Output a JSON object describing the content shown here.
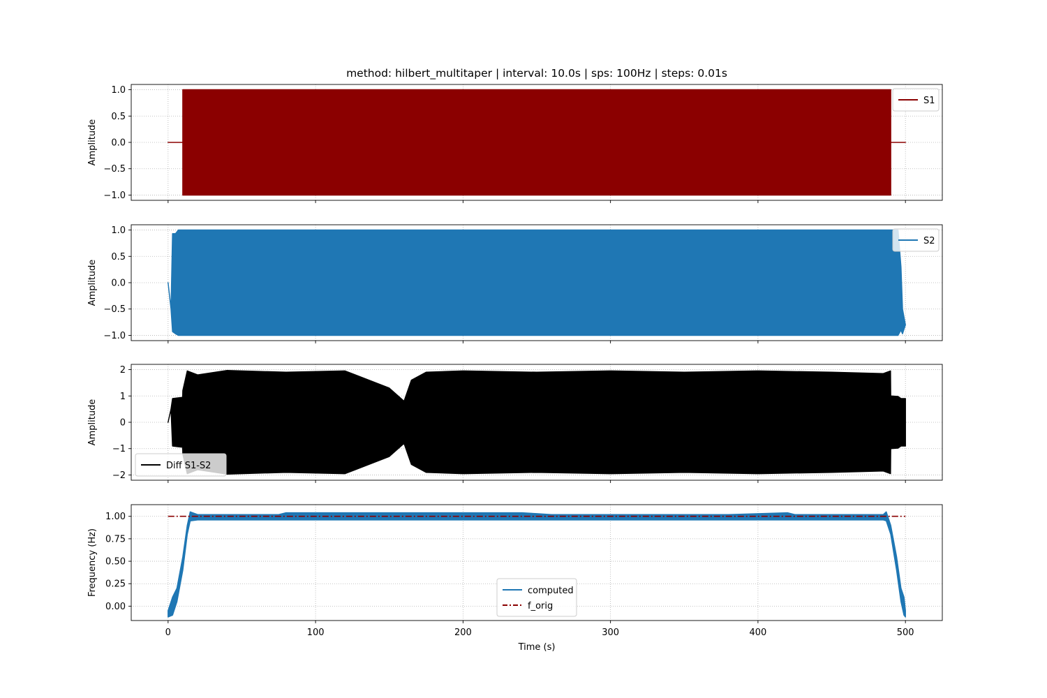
{
  "chart_data": {
    "title": "method: hilbert_multitaper | interval: 10.0s  |  sps: 100Hz  |  steps: 0.01s",
    "shared_x": {
      "xlabel": "Time (s)",
      "xlim": [
        -25,
        525
      ],
      "xticks": [
        0,
        100,
        200,
        300,
        400,
        500
      ],
      "xtick_labels": [
        "0",
        "100",
        "200",
        "300",
        "400",
        "500"
      ]
    },
    "grid": true,
    "panels": [
      {
        "type": "line",
        "ylabel": "Amplitude",
        "ylim": [
          -1.1,
          1.1
        ],
        "yticks": [
          -1.0,
          -0.5,
          0.0,
          0.5,
          1.0
        ],
        "ytick_labels": [
          "−1.0",
          "−0.5",
          "0.0",
          "0.5",
          "1.0"
        ],
        "legend_position": "top-right",
        "series": [
          {
            "name": "S1",
            "color": "#8b0000",
            "style": "solid",
            "shape": "oscillating envelope",
            "x": [
              0,
              10,
              10,
              490,
              490,
              500
            ],
            "upper": [
              0,
              0,
              1,
              1,
              0,
              0
            ],
            "lower": [
              0,
              0,
              -1,
              -1,
              0,
              0
            ]
          }
        ]
      },
      {
        "type": "line",
        "ylabel": "Amplitude",
        "ylim": [
          -1.1,
          1.1
        ],
        "yticks": [
          -1.0,
          -0.5,
          0.0,
          0.5,
          1.0
        ],
        "ytick_labels": [
          "−1.0",
          "−0.5",
          "0.0",
          "0.5",
          "1.0"
        ],
        "legend_position": "top-right",
        "series": [
          {
            "name": "S2",
            "color": "#1f77b4",
            "style": "solid",
            "shape": "oscillating envelope",
            "x": [
              0,
              2,
              3,
              5,
              7,
              495,
              497,
              498,
              500
            ],
            "upper": [
              0,
              -0.5,
              0.93,
              0.93,
              1,
              1,
              0.3,
              -0.5,
              -0.8
            ],
            "lower": [
              0,
              -0.5,
              -0.93,
              -0.97,
              -1,
              -1,
              -0.9,
              -0.97,
              -0.8
            ]
          }
        ]
      },
      {
        "type": "line",
        "ylabel": "Amplitude",
        "ylim": [
          -2.2,
          2.2
        ],
        "yticks": [
          -2,
          -1,
          0,
          1,
          2
        ],
        "ytick_labels": [
          "−2",
          "−1",
          "0",
          "1",
          "2"
        ],
        "legend_position": "bottom-left",
        "series": [
          {
            "name": "Diff S1-S2",
            "color": "#000000",
            "style": "solid",
            "shape": "oscillating envelope",
            "x": [
              0,
              2,
              3,
              9.9,
              10,
              13,
              20,
              40,
              80,
              120,
              150,
              160,
              165,
              175,
              200,
              250,
              300,
              350,
              400,
              450,
              485,
              489.9,
              490,
              495,
              497,
              500
            ],
            "upper": [
              0,
              0.5,
              0.9,
              0.95,
              1.2,
              1.95,
              1.8,
              1.97,
              1.9,
              1.95,
              1.3,
              0.8,
              1.6,
              1.9,
              1.95,
              1.9,
              1.95,
              1.9,
              1.95,
              1.9,
              1.85,
              1.95,
              1.0,
              0.98,
              0.9,
              0.9
            ],
            "lower": [
              0,
              0.5,
              -0.9,
              -0.95,
              -1.2,
              -1.95,
              -1.8,
              -1.97,
              -1.9,
              -1.95,
              -1.3,
              -0.8,
              -1.6,
              -1.9,
              -1.95,
              -1.9,
              -1.95,
              -1.9,
              -1.95,
              -1.9,
              -1.85,
              -1.95,
              -1.0,
              -0.98,
              -0.9,
              -0.9
            ]
          }
        ]
      },
      {
        "type": "line",
        "ylabel": "Frequency (Hz)",
        "ylim": [
          -0.16,
          1.13
        ],
        "yticks": [
          0.0,
          0.25,
          0.5,
          0.75,
          1.0
        ],
        "ytick_labels": [
          "0.00",
          "0.25",
          "0.50",
          "0.75",
          "1.00"
        ],
        "legend_position": "lower center",
        "series": [
          {
            "name": "computed",
            "color": "#1f77b4",
            "style": "solid",
            "x": [
              0,
              3,
              6,
              10,
              13,
              15,
              20,
              75,
              80,
              240,
              250,
              260,
              380,
              420,
              425,
              485,
              487,
              490,
              494,
              497,
              499,
              500
            ],
            "upper": [
              -0.05,
              0.1,
              0.2,
              0.55,
              0.9,
              1.05,
              1.02,
              1.02,
              1.04,
              1.04,
              1.03,
              1.02,
              1.02,
              1.04,
              1.02,
              1.02,
              1.05,
              0.9,
              0.55,
              0.2,
              0.1,
              -0.05
            ],
            "lower": [
              -0.12,
              -0.1,
              0.05,
              0.4,
              0.8,
              0.95,
              0.96,
              0.96,
              0.96,
              0.96,
              0.96,
              0.96,
              0.96,
              0.96,
              0.96,
              0.96,
              0.95,
              0.8,
              0.4,
              0.05,
              -0.1,
              -0.12
            ]
          },
          {
            "name": "f_orig",
            "color": "#8b0000",
            "style": "dash-dot",
            "x": [
              0,
              500
            ],
            "y": [
              1.0,
              1.0
            ]
          }
        ]
      }
    ]
  }
}
